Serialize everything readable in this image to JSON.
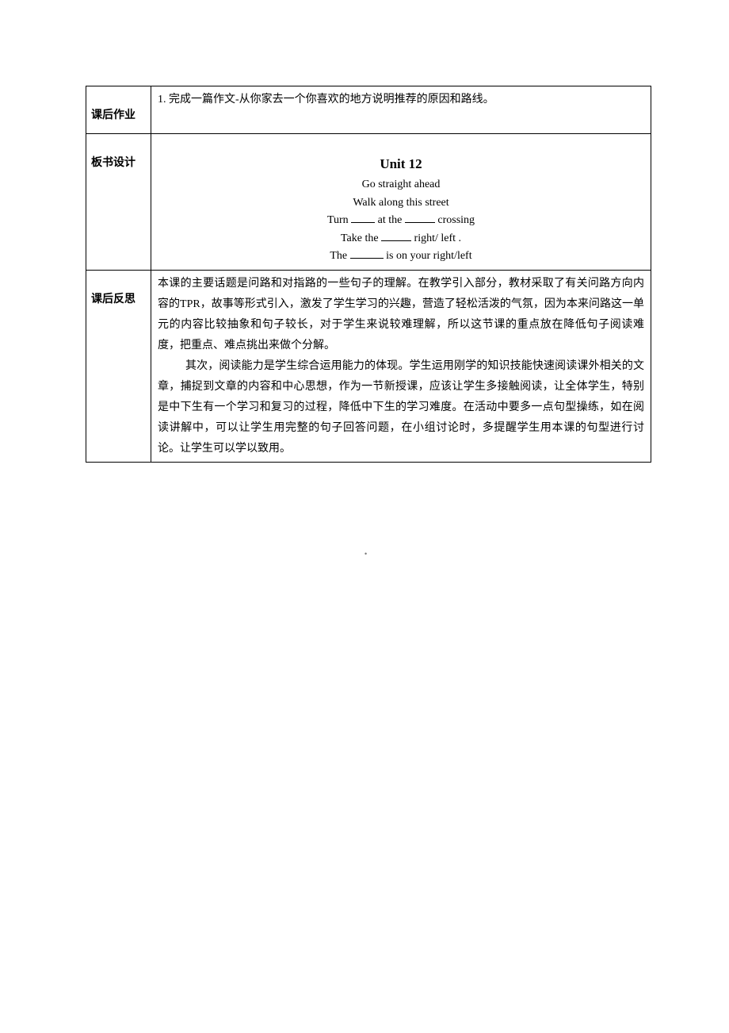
{
  "rows": {
    "homework": {
      "label": "课后作业",
      "content": "1. 完成一篇作文-从你家去一个你喜欢的地方说明推荐的原因和路线。"
    },
    "board": {
      "label": "板书设计",
      "title": "Unit 12",
      "lines": [
        "Go straight ahead",
        "Walk along this street"
      ],
      "fill_turn_pre": "Turn",
      "fill_turn_mid": "at the",
      "fill_turn_post": "crossing",
      "fill_take_pre": "Take the",
      "fill_take_post": "right/ left .",
      "fill_the_pre": "The",
      "fill_the_post": "is on your right/left"
    },
    "reflection": {
      "label": "课后反思",
      "paragraph1": "本课的主要话题是问路和对指路的一些句子的理解。在教学引入部分，教材采取了有关问路方向内容的TPR，故事等形式引入，激发了学生学习的兴趣，营造了轻松活泼的气氛，因为本来问路这一单元的内容比较抽象和句子较长，对于学生来说较难理解，所以这节课的重点放在降低句子阅读难度，把重点、难点挑出来做个分解。",
      "paragraph2": "其次，阅读能力是学生综合运用能力的体现。学生运用刚学的知识技能快速阅读课外相关的文章，捕捉到文章的内容和中心思想，作为一节新授课，应该让学生多接触阅读，让全体学生，特别是中下生有一个学习和复习的过程，降低中下生的学习难度。在活动中要多一点句型操练，如在阅读讲解中，可以让学生用完整的句子回答问题，在小组讨论时，多提醒学生用本课的句型进行讨论。让学生可以学以致用。"
    }
  },
  "footer": "•"
}
